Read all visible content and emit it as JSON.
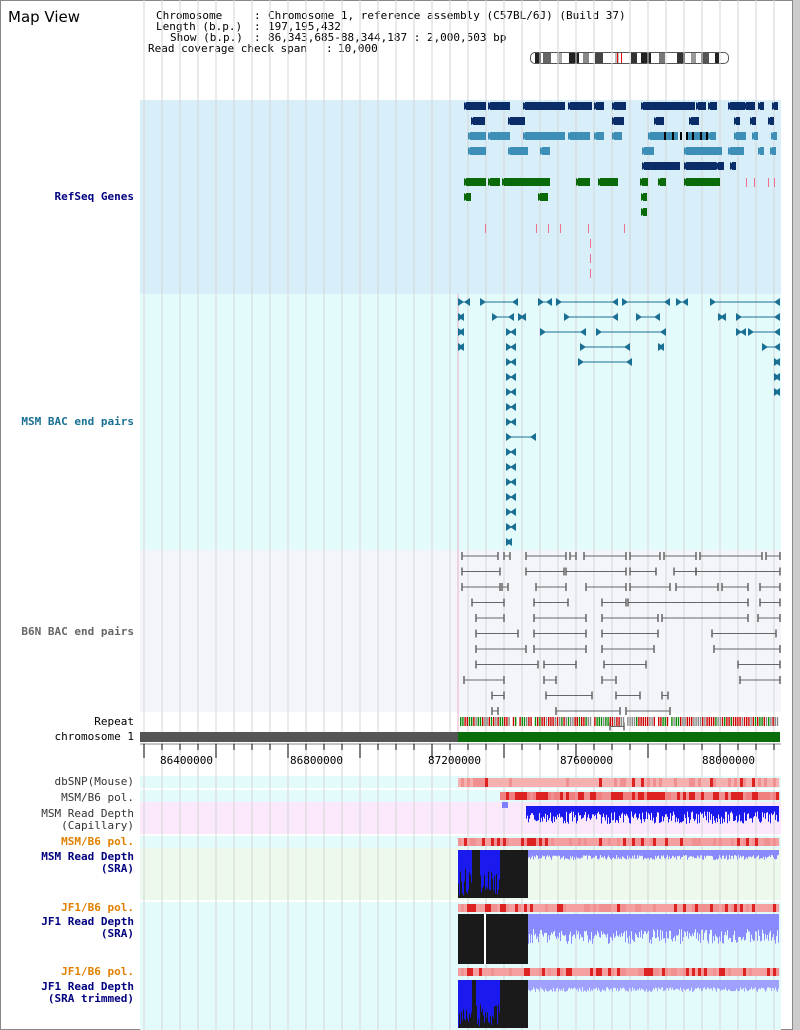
{
  "title": "Map View",
  "info": {
    "chromosome_key": "Chromosome",
    "chromosome_val": "Chromosome 1, reference assembly (C57BL/6J) (Build 37)",
    "length_key": "Length (b.p.)",
    "length_val": "197,195,432",
    "show_key": "Show (b.p.)",
    "show_val": "86,343,685-88,344,187 : 2,000,503 bp",
    "coverage_key": "Read coverage check span",
    "coverage_val": "10,000"
  },
  "tracks": {
    "refseq": "RefSeq Genes",
    "msm_bac": "MSM BAC end pairs",
    "b6n_bac": "B6N BAC end pairs",
    "repeat": "Repeat",
    "chromosome": "chromosome 1",
    "dbsnp": "dbSNP(Mouse)",
    "msm_b6_pol1": "MSM/B6 pol.",
    "msm_depth_cap_1": "MSM Read Depth",
    "msm_depth_cap_2": "(Capillary)",
    "msm_b6_pol2": "MSM/B6 pol.",
    "msm_depth_sra_1": "MSM Read Depth",
    "msm_depth_sra_2": "(SRA)",
    "jf1_b6_pol1": "JF1/B6 pol.",
    "jf1_depth_sra_1": "JF1 Read Depth",
    "jf1_depth_sra_2": "(SRA)",
    "jf1_b6_pol2": "JF1/B6 pol.",
    "jf1_depth_trim_1": "JF1 Read Depth",
    "jf1_depth_trim_2": "(SRA trimmed)"
  },
  "axis": {
    "ticks": [
      "86400000",
      "86800000",
      "87200000",
      "87600000",
      "88000000"
    ]
  },
  "colors": {
    "refseq_bg": "#d8effa",
    "msm_bg": "#e4fbfb",
    "b6n_bg": "#f4f5fb",
    "gene_dark": "#0a2d6a",
    "gene_mid": "#3d8fb8",
    "gene_green": "#0a6a0a",
    "msm_feature": "#1a6f94",
    "b6n_feature": "#666666",
    "chrom_gray": "#555555",
    "chrom_green": "#0a6e0a",
    "pol_orange": "#e08000",
    "depth_blue": "#1a1aee",
    "label_blue": "#00007f"
  }
}
